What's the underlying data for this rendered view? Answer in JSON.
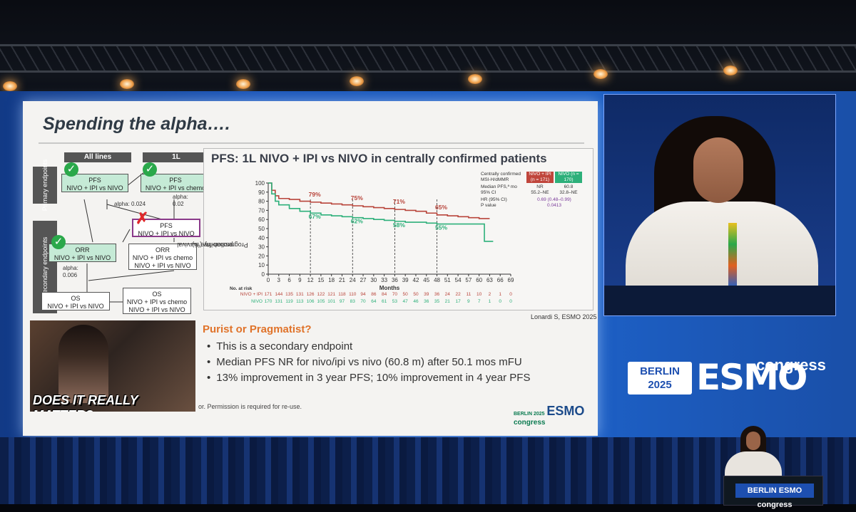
{
  "slide": {
    "title": "Spending the alpha….",
    "flow": {
      "col_all_lines": "All lines",
      "col_1l": "1L",
      "label_primary": "Primary endpoints",
      "label_secondary": "Secondary endpoints",
      "pfs_all_1": "PFS",
      "pfs_all_2": "NIVO + IPI vs NIVO",
      "pfs_1l_1": "PFS",
      "pfs_1l_2": "NIVO + IPI vs chemo",
      "alpha_1l": "alpha:",
      "alpha_1l_val": "0.02",
      "alpha_all": "alpha: 0.024",
      "pfs_mid_1": "PFS",
      "pfs_mid_2": "NIVO + IPI vs NIVO",
      "orr_left_1": "ORR",
      "orr_left_2": "NIVO + IPI vs NIVO",
      "alpha_orr": "alpha:",
      "alpha_orr_val": "0.006",
      "orr_right_1": "ORR",
      "orr_right_2": "NIVO + IPI vs chemo",
      "orr_right_3": "NIVO + IPI vs NIVO",
      "os_left_1": "OS",
      "os_left_2": "NIVO + IPI vs NIVO",
      "os_right_1": "OS",
      "os_right_2": "NIVO + IPI vs chemo",
      "os_right_3": "NIVO + IPI vs NIVO"
    },
    "km": {
      "title": "PFS: 1L NIVO + IPI vs NIVO in centrally confirmed patients",
      "ylabel_1": "Progression-free survival",
      "ylabel_2": "probability (%)",
      "xlabel": "Months",
      "table_head": "Centrally confirmed MSI-H/dMMR",
      "col_nivoipi": "NIVO + IPI (n = 171)",
      "col_nivo": "NIVO (n = 170)",
      "row_median": "Median PFS,ª mo",
      "row_ci": "95% CI",
      "median_nivoipi": "NR",
      "median_nivo": "60.8",
      "ci_nivoipi": "55.2–NE",
      "ci_nivo": "32.8–NE",
      "row_hr": "HR (95% CI)",
      "hr_val": "0.69 (0.48–0.99)",
      "row_p": "P value",
      "p_val": "0.0413",
      "at_risk_label": "No. at risk",
      "risk_label_nivoipi": "NIVO + IPI",
      "risk_label_nivo": "NIVO"
    },
    "citation": "Lonardi S, ESMO 2025",
    "subtitle": "Purist or Pragmatist?",
    "bullets": [
      "This is a secondary endpoint",
      "Median PFS NR for nivo/ipi vs nivo (60.8 m) after 50.1 mos mFU",
      "13% improvement in 3 year PFS; 10% improvement in 4 year PFS"
    ],
    "meme_text": "DOES IT REALLY MATTER?",
    "permission": "or. Permission is required for re-use.",
    "logo_year": "BERLIN 2025",
    "logo_word": "ESMO",
    "logo_congress": "congress"
  },
  "brand": {
    "city": "BERLIN",
    "year": "2025",
    "word": "ESMO",
    "congress": "congress"
  },
  "lectern_logo": "BERLIN ESMO congress",
  "chart_data": {
    "type": "line",
    "xlabel": "Months",
    "ylabel": "Progression-free survival probability (%)",
    "xlim": [
      0,
      69
    ],
    "ylim": [
      0,
      100
    ],
    "x_ticks": [
      0,
      3,
      6,
      9,
      12,
      15,
      18,
      21,
      24,
      27,
      30,
      33,
      36,
      39,
      42,
      45,
      48,
      51,
      54,
      57,
      60,
      63,
      66,
      69
    ],
    "y_ticks": [
      0,
      10,
      20,
      30,
      40,
      50,
      60,
      70,
      80,
      90,
      100
    ],
    "series": [
      {
        "name": "NIVO + IPI",
        "color": "#b8443a",
        "x": [
          0,
          1,
          2,
          3,
          6,
          9,
          12,
          15,
          18,
          21,
          24,
          27,
          30,
          33,
          36,
          39,
          42,
          45,
          48,
          51,
          54,
          57,
          60,
          63
        ],
        "y": [
          100,
          92,
          86,
          83,
          82,
          80,
          79,
          78,
          77,
          76,
          75,
          74,
          73,
          72,
          71,
          70,
          69,
          67,
          65,
          64,
          63,
          62,
          61,
          61
        ],
        "annotations": [
          {
            "x": 12,
            "label": "79%"
          },
          {
            "x": 24,
            "label": "75%"
          },
          {
            "x": 36,
            "label": "71%"
          },
          {
            "x": 48,
            "label": "65%"
          }
        ],
        "at_risk": [
          171,
          144,
          135,
          131,
          126,
          122,
          121,
          118,
          110,
          94,
          86,
          84,
          70,
          50,
          50,
          39,
          36,
          24,
          22,
          11,
          10,
          2,
          1,
          0
        ]
      },
      {
        "name": "NIVO",
        "color": "#2db07a",
        "x": [
          0,
          1,
          2,
          3,
          6,
          9,
          12,
          15,
          18,
          21,
          24,
          27,
          30,
          33,
          36,
          39,
          42,
          45,
          48,
          51,
          54,
          57,
          60,
          61,
          61.5,
          64
        ],
        "y": [
          100,
          88,
          80,
          76,
          72,
          69,
          67,
          65,
          64,
          63,
          62,
          61,
          60,
          59,
          58,
          57,
          57,
          56,
          55,
          55,
          55,
          55,
          55,
          55,
          36,
          36
        ],
        "annotations": [
          {
            "x": 12,
            "label": "67%"
          },
          {
            "x": 24,
            "label": "62%"
          },
          {
            "x": 36,
            "label": "58%"
          },
          {
            "x": 48,
            "label": "55%"
          }
        ],
        "at_risk": [
          170,
          131,
          119,
          113,
          106,
          105,
          101,
          97,
          83,
          70,
          64,
          61,
          53,
          47,
          46,
          36,
          35,
          21,
          17,
          9,
          7,
          1,
          0,
          0
        ]
      }
    ]
  }
}
